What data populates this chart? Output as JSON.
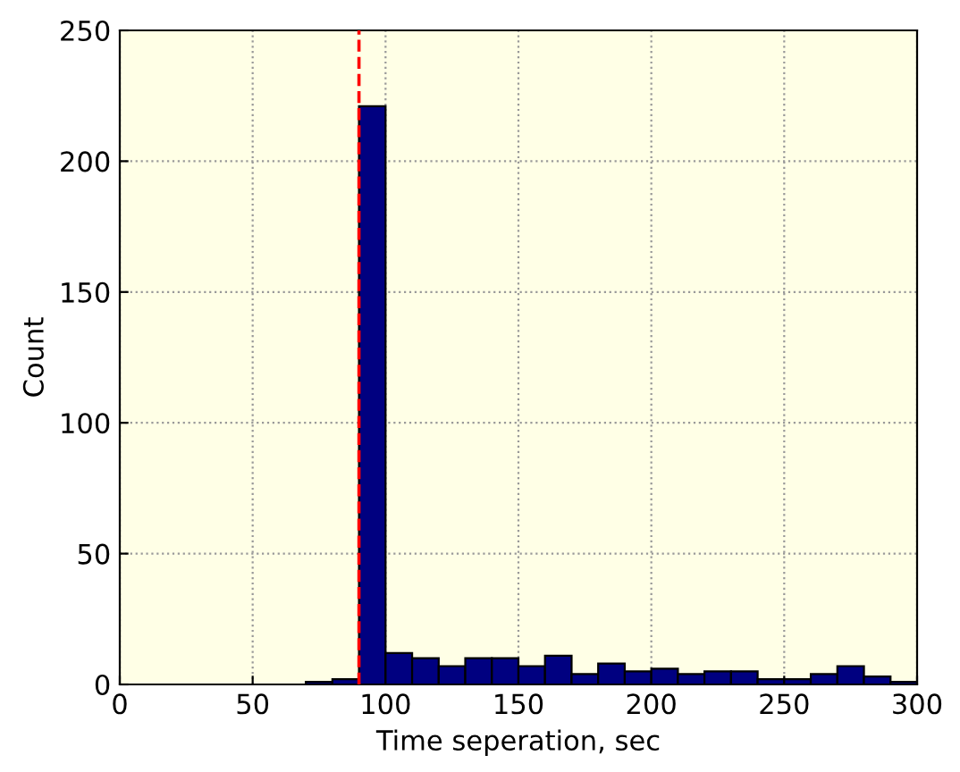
{
  "chart_data": {
    "type": "histogram",
    "xlabel": "Time seperation, sec",
    "ylabel": "Count",
    "bins": [
      0,
      10,
      20,
      30,
      40,
      50,
      60,
      70,
      80,
      90,
      100,
      110,
      120,
      130,
      140,
      150,
      160,
      170,
      180,
      190,
      200,
      210,
      220,
      230,
      240,
      250,
      260,
      270,
      280,
      290,
      300
    ],
    "values": [
      0,
      0,
      0,
      0,
      0,
      0,
      0,
      1,
      2,
      221,
      12,
      10,
      7,
      10,
      10,
      7,
      11,
      4,
      8,
      5,
      6,
      4,
      5,
      5,
      2,
      2,
      4,
      7,
      3,
      1
    ],
    "color": "#000080",
    "xlim": [
      0,
      300
    ],
    "xticks": [
      0,
      50,
      100,
      150,
      200,
      250,
      300
    ],
    "ylim": [
      0,
      250
    ],
    "yticks": [
      0,
      50,
      100,
      150,
      200,
      250
    ],
    "grid": true,
    "ref_lines": [
      {
        "axis": "x",
        "value": 90,
        "color": "#ff0000",
        "line_style": "dashed"
      }
    ]
  }
}
